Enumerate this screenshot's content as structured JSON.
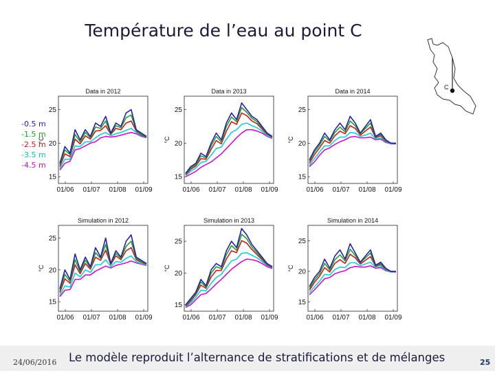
{
  "slide": {
    "title": "Température de l’eau au point C",
    "caption": "Le modèle reproduit l’alternance de stratifications et de mélanges",
    "date": "24/06/2016",
    "page_number": "25",
    "map_label": "C"
  },
  "legend": [
    {
      "label": "-0.5 m",
      "color": "#1f1fbf"
    },
    {
      "label": "-1.5 m",
      "color": "#20a020"
    },
    {
      "label": "-2.5 m",
      "color": "#d01818"
    },
    {
      "label": "-3.5 m",
      "color": "#10d0d8"
    },
    {
      "label": "-4.5 m",
      "color": "#d010d0"
    }
  ],
  "chart_data": [
    {
      "type": "line",
      "title": "Data in 2012",
      "ylabel": "°C",
      "ylim": [
        14,
        27
      ],
      "yticks": [
        15,
        20,
        25
      ],
      "xticks": [
        "01/06",
        "01/07",
        "01/08",
        "01/09"
      ],
      "series": [
        {
          "name": "-0.5 m",
          "values": [
            17,
            19.5,
            18.5,
            22,
            20.5,
            22,
            21,
            23,
            22.5,
            24,
            21.5,
            23,
            22.5,
            24.5,
            25,
            22,
            21.5,
            21
          ]
        },
        {
          "name": "-1.5 m",
          "values": [
            16.8,
            19,
            18.3,
            21.3,
            20.2,
            21.6,
            20.8,
            22.4,
            22.2,
            23.3,
            21.4,
            22.6,
            22.3,
            23.8,
            24.2,
            21.9,
            21.3,
            21
          ]
        },
        {
          "name": "-2.5 m",
          "values": [
            16.5,
            18.4,
            18,
            20.6,
            19.9,
            21.1,
            20.6,
            21.8,
            21.9,
            22.6,
            21.3,
            22.2,
            22,
            23,
            23.3,
            21.8,
            21.2,
            20.9
          ]
        },
        {
          "name": "-3.5 m",
          "values": [
            16.2,
            17.6,
            17.6,
            19.6,
            19.5,
            20.2,
            20.2,
            20.8,
            21.3,
            21.6,
            21.1,
            21.4,
            21.6,
            21.9,
            22.2,
            21.6,
            21.1,
            20.8
          ]
        },
        {
          "name": "-4.5 m",
          "values": [
            16,
            17,
            17.3,
            19,
            19.2,
            19.6,
            20,
            20.2,
            20.8,
            21,
            20.9,
            21,
            21.2,
            21.4,
            21.6,
            21.4,
            21,
            20.8
          ]
        }
      ]
    },
    {
      "type": "line",
      "title": "Data in 2013",
      "ylabel": "°C",
      "ylim": [
        14,
        27
      ],
      "yticks": [
        15,
        20,
        25
      ],
      "xticks": [
        "01/06",
        "01/07",
        "01/08",
        "01/09"
      ],
      "series": [
        {
          "name": "-0.5 m",
          "values": [
            15.5,
            16.5,
            17,
            18.5,
            18,
            20,
            21.5,
            20.5,
            23,
            24.5,
            23.5,
            26,
            25,
            24,
            23.5,
            22.5,
            21.5,
            21
          ]
        },
        {
          "name": "-1.5 m",
          "values": [
            15.4,
            16.3,
            16.8,
            18.1,
            17.8,
            19.6,
            21,
            20.2,
            22.5,
            23.9,
            23.2,
            25.3,
            24.6,
            23.7,
            23.2,
            22.3,
            21.4,
            21
          ]
        },
        {
          "name": "-2.5 m",
          "values": [
            15.3,
            16.1,
            16.6,
            17.7,
            17.6,
            19.1,
            20.4,
            19.9,
            21.8,
            23.2,
            22.8,
            24.5,
            24.1,
            23.3,
            22.9,
            22.1,
            21.3,
            20.9
          ]
        },
        {
          "name": "-3.5 m",
          "values": [
            15.2,
            15.8,
            16.3,
            17.1,
            17.3,
            18.2,
            19.2,
            19.4,
            20.6,
            21.6,
            22,
            22.8,
            23,
            22.6,
            22.3,
            21.8,
            21.1,
            20.8
          ]
        },
        {
          "name": "-4.5 m",
          "values": [
            15,
            15.4,
            15.8,
            16.4,
            16.8,
            17.2,
            17.8,
            18.4,
            19.2,
            20,
            20.8,
            21.5,
            22,
            22,
            21.8,
            21.5,
            21,
            20.7
          ]
        }
      ]
    },
    {
      "type": "line",
      "title": "Data in 2014",
      "ylabel": "°C",
      "ylim": [
        14,
        27
      ],
      "yticks": [
        15,
        20,
        25
      ],
      "xticks": [
        "01/06",
        "01/07",
        "01/08",
        "01/09"
      ],
      "series": [
        {
          "name": "-0.5 m",
          "values": [
            17.5,
            19,
            20,
            21.5,
            20.5,
            22,
            23,
            22,
            24,
            23,
            21.5,
            22.5,
            23.5,
            21,
            21.5,
            20.5,
            20,
            20
          ]
        },
        {
          "name": "-1.5 m",
          "values": [
            17.3,
            18.7,
            19.7,
            21,
            20.3,
            21.6,
            22.4,
            21.7,
            23.3,
            22.6,
            21.4,
            22.2,
            23,
            20.9,
            21.3,
            20.4,
            20,
            20
          ]
        },
        {
          "name": "-2.5 m",
          "values": [
            17,
            18.3,
            19.3,
            20.4,
            20,
            21.1,
            21.8,
            21.4,
            22.6,
            22.2,
            21.2,
            21.8,
            22.4,
            20.8,
            21.1,
            20.3,
            20,
            20
          ]
        },
        {
          "name": "-3.5 m",
          "values": [
            16.7,
            17.7,
            18.7,
            19.6,
            19.6,
            20.4,
            20.9,
            20.9,
            21.6,
            21.5,
            21,
            21.2,
            21.5,
            20.6,
            20.8,
            20.2,
            19.9,
            20
          ]
        },
        {
          "name": "-4.5 m",
          "values": [
            16.5,
            17.2,
            18.2,
            19,
            19.3,
            19.8,
            20.2,
            20.5,
            20.9,
            21,
            20.8,
            20.8,
            20.9,
            20.5,
            20.6,
            20.1,
            19.9,
            19.9
          ]
        }
      ]
    },
    {
      "type": "line",
      "title": "Simulation in 2012",
      "ylabel": "°C",
      "ylim": [
        13.5,
        27
      ],
      "yticks": [
        15,
        20,
        25
      ],
      "xticks": [
        "01/06",
        "01/07",
        "01/08",
        "01/09"
      ],
      "series": [
        {
          "name": "-0.5 m",
          "values": [
            17,
            20,
            18.5,
            22.5,
            20,
            22,
            20.5,
            23.5,
            22,
            25,
            21,
            23,
            22,
            24.5,
            25.5,
            22,
            21.5,
            21
          ]
        },
        {
          "name": "-1.5 m",
          "values": [
            16.7,
            19.3,
            18.2,
            21.6,
            19.7,
            21.5,
            20.3,
            22.7,
            21.8,
            24,
            20.9,
            22.6,
            21.8,
            23.7,
            24.5,
            21.8,
            21.3,
            21
          ]
        },
        {
          "name": "-2.5 m",
          "values": [
            16.4,
            18.6,
            17.9,
            20.8,
            19.4,
            21,
            20.1,
            22,
            21.5,
            23.1,
            20.8,
            22.2,
            21.6,
            23,
            23.5,
            21.6,
            21.2,
            20.9
          ]
        },
        {
          "name": "-3.5 m",
          "values": [
            16,
            17.5,
            17.3,
            19.5,
            18.9,
            20,
            19.6,
            20.8,
            20.8,
            21.6,
            20.5,
            21.3,
            21.2,
            21.8,
            22.2,
            21.3,
            21,
            20.8
          ]
        },
        {
          "name": "-4.5 m",
          "values": [
            15.8,
            16.8,
            16.9,
            18.5,
            18.5,
            19.2,
            19.2,
            19.8,
            20.2,
            20.6,
            20.3,
            20.7,
            20.9,
            21.1,
            21.4,
            21.1,
            20.9,
            20.7
          ]
        }
      ]
    },
    {
      "type": "line",
      "title": "Simulation in 2013",
      "ylabel": "°C",
      "ylim": [
        14,
        27.5
      ],
      "yticks": [
        15,
        20,
        25
      ],
      "xticks": [
        "01/06",
        "01/07",
        "01/08",
        "01/09"
      ],
      "series": [
        {
          "name": "-0.5 m",
          "values": [
            15,
            16,
            17,
            19,
            18,
            20.5,
            21.5,
            21,
            23.5,
            25,
            24,
            27,
            26,
            24.5,
            23.5,
            22.5,
            21.5,
            21
          ]
        },
        {
          "name": "-1.5 m",
          "values": [
            14.9,
            15.8,
            16.8,
            18.6,
            17.8,
            20,
            21,
            20.7,
            22.9,
            24.3,
            23.6,
            26.1,
            25.4,
            24.1,
            23.2,
            22.3,
            21.4,
            21
          ]
        },
        {
          "name": "-2.5 m",
          "values": [
            14.8,
            15.6,
            16.6,
            18.1,
            17.6,
            19.4,
            20.4,
            20.4,
            22.2,
            23.5,
            23.2,
            25.1,
            24.7,
            23.7,
            22.9,
            22.1,
            21.3,
            20.9
          ]
        },
        {
          "name": "-3.5 m",
          "values": [
            14.7,
            15.3,
            16.2,
            17.3,
            17.2,
            18.4,
            19.3,
            19.8,
            20.9,
            21.9,
            22.2,
            23.1,
            23.2,
            22.8,
            22.4,
            21.8,
            21.2,
            20.8
          ]
        },
        {
          "name": "-4.5 m",
          "values": [
            14.6,
            15,
            15.8,
            16.6,
            16.8,
            17.5,
            18.3,
            19,
            19.8,
            20.6,
            21.2,
            21.8,
            22.2,
            22.1,
            21.9,
            21.5,
            21,
            20.7
          ]
        }
      ]
    },
    {
      "type": "line",
      "title": "Simulation in 2014",
      "ylabel": "°C",
      "ylim": [
        13.5,
        27.5
      ],
      "yticks": [
        15,
        20,
        25
      ],
      "xticks": [
        "01/06",
        "01/07",
        "01/08",
        "01/09"
      ],
      "series": [
        {
          "name": "-0.5 m",
          "values": [
            17.5,
            19,
            20,
            22,
            20.5,
            22.5,
            23.5,
            22,
            24.5,
            23,
            21.5,
            22.5,
            23.5,
            21,
            21.5,
            20.5,
            20,
            20
          ]
        },
        {
          "name": "-1.5 m",
          "values": [
            17.2,
            18.6,
            19.6,
            21.3,
            20.2,
            21.9,
            22.7,
            21.7,
            23.6,
            22.6,
            21.4,
            22.2,
            23,
            20.9,
            21.3,
            20.4,
            20,
            20
          ]
        },
        {
          "name": "-2.5 m",
          "values": [
            16.9,
            18.2,
            19.2,
            20.6,
            19.9,
            21.3,
            21.9,
            21.3,
            22.8,
            22.2,
            21.2,
            21.8,
            22.4,
            20.8,
            21.1,
            20.3,
            20,
            20
          ]
        },
        {
          "name": "-3.5 m",
          "values": [
            16.5,
            17.5,
            18.4,
            19.5,
            19.4,
            20.3,
            20.7,
            20.6,
            21.4,
            21.4,
            20.9,
            21.2,
            21.5,
            20.6,
            20.8,
            20.2,
            19.9,
            20
          ]
        },
        {
          "name": "-4.5 m",
          "values": [
            16.2,
            17,
            17.9,
            18.8,
            19,
            19.6,
            19.9,
            20.1,
            20.6,
            20.8,
            20.7,
            20.7,
            20.9,
            20.5,
            20.6,
            20.1,
            19.9,
            19.9
          ]
        }
      ]
    }
  ]
}
